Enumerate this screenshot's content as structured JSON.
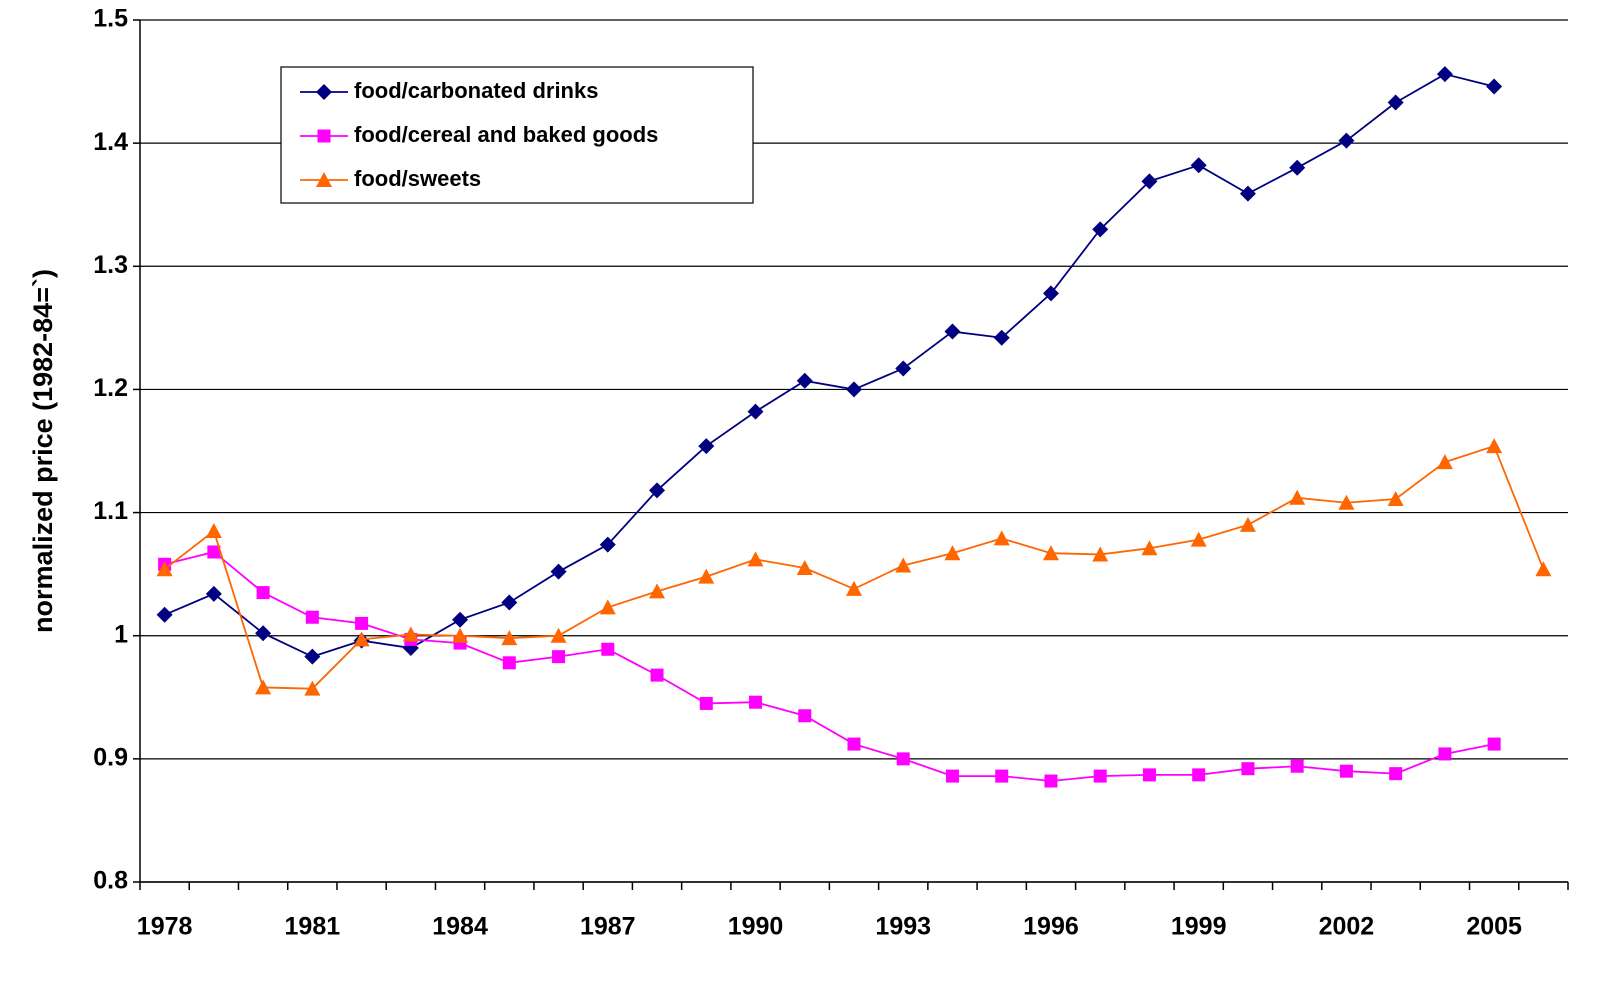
{
  "chart_data": {
    "type": "line",
    "y_label": "normalized price (1982-84=`)",
    "categories": [
      "1978",
      null,
      null,
      "1981",
      null,
      null,
      "1984",
      null,
      null,
      "1987",
      null,
      null,
      "1990",
      null,
      null,
      "1993",
      null,
      null,
      "1996",
      null,
      null,
      "1999",
      null,
      null,
      "2002",
      null,
      null,
      "2005",
      null
    ],
    "series": [
      {
        "name": "food/carbonated drinks",
        "color": "#000080",
        "marker": "diamond",
        "values": [
          1.017,
          1.034,
          1.002,
          0.983,
          0.996,
          0.99,
          1.013,
          1.027,
          1.052,
          1.074,
          1.118,
          1.154,
          1.182,
          1.207,
          1.2,
          1.217,
          1.247,
          1.242,
          1.278,
          1.33,
          1.369,
          1.382,
          1.359,
          1.38,
          1.402,
          1.433,
          1.456,
          1.446,
          null
        ]
      },
      {
        "name": "food/cereal and baked goods",
        "color": "#ff00ff",
        "marker": "square",
        "values": [
          1.058,
          1.068,
          1.035,
          1.015,
          1.01,
          0.997,
          0.994,
          0.978,
          0.983,
          0.989,
          0.968,
          0.945,
          0.946,
          0.935,
          0.912,
          0.9,
          0.886,
          0.886,
          0.882,
          0.886,
          0.887,
          0.887,
          0.892,
          0.894,
          0.89,
          0.888,
          0.904,
          0.912,
          null
        ]
      },
      {
        "name": "food/sweets",
        "color": "#ff6600",
        "marker": "triangle",
        "values": [
          1.054,
          1.085,
          0.958,
          0.957,
          0.997,
          1.001,
          1.0,
          0.998,
          1.0,
          1.023,
          1.036,
          1.048,
          1.062,
          1.055,
          1.038,
          1.057,
          1.067,
          1.079,
          1.067,
          1.066,
          1.071,
          1.078,
          1.09,
          1.112,
          1.108,
          1.111,
          1.141,
          1.154,
          1.054
        ]
      }
    ],
    "ylim": [
      0.8,
      1.5
    ],
    "yticks": [
      0.8,
      0.9,
      1,
      1.1,
      1.2,
      1.3,
      1.4,
      1.5
    ],
    "grid": true
  }
}
